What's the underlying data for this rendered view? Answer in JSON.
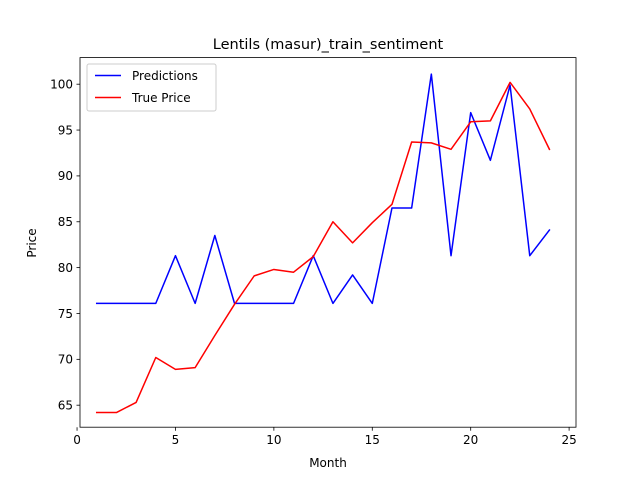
{
  "chart_data": {
    "type": "line",
    "title": "Lentils (masur)_train_sentiment",
    "xlabel": "Month",
    "ylabel": "Price",
    "xlim": [
      0.15,
      25.35
    ],
    "ylim": [
      62.6,
      102.9
    ],
    "xticks": [
      0,
      5,
      10,
      15,
      20,
      25
    ],
    "yticks": [
      65,
      70,
      75,
      80,
      85,
      90,
      95,
      100
    ],
    "legend_position": "top-left",
    "grid": false,
    "x": [
      1,
      2,
      3,
      4,
      5,
      6,
      7,
      8,
      9,
      10,
      11,
      12,
      13,
      14,
      15,
      16,
      17,
      18,
      19,
      20,
      21,
      22,
      23,
      24
    ],
    "series": [
      {
        "name": "Predictions",
        "color": "#0000ff",
        "values": [
          76.1,
          76.1,
          76.1,
          76.1,
          81.3,
          76.1,
          83.5,
          76.1,
          76.1,
          76.1,
          76.1,
          81.3,
          76.1,
          79.2,
          76.1,
          86.5,
          86.5,
          101.1,
          81.3,
          96.9,
          91.7,
          99.9,
          81.3,
          84.1
        ]
      },
      {
        "name": "True Price",
        "color": "#ff0000",
        "values": [
          64.2,
          64.2,
          65.3,
          70.2,
          68.9,
          69.1,
          72.6,
          76.0,
          79.1,
          79.8,
          79.5,
          81.2,
          85.0,
          82.7,
          84.9,
          86.9,
          93.7,
          93.6,
          92.9,
          95.9,
          96.0,
          100.2,
          97.3,
          92.9
        ]
      }
    ]
  }
}
